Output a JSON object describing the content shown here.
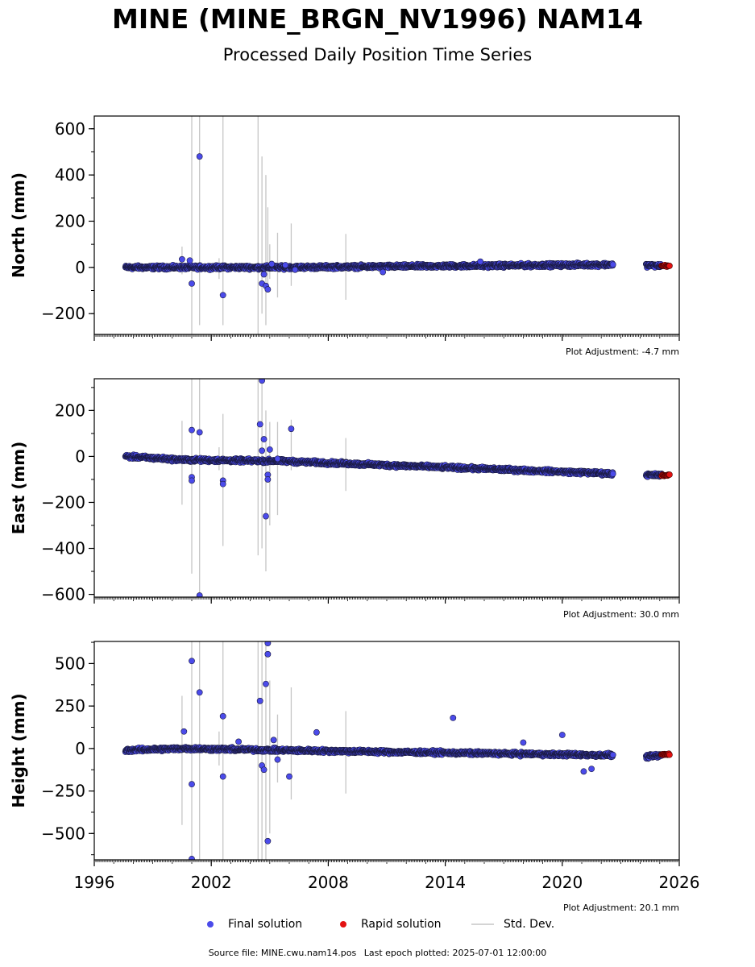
{
  "title": "MINE (MINE_BRGN_NV1996) NAM14",
  "subtitle": "Processed Daily Position Time Series",
  "legend": {
    "final_label": "Final solution",
    "rapid_label": "Rapid solution",
    "std_label": "Std. Dev.",
    "final_color": "#4b4bea",
    "rapid_color": "#e31212",
    "std_color": "#d4d4d4"
  },
  "footer": {
    "source": "Source file: MINE.cwu.nam14.pos",
    "last_epoch": "Last epoch plotted: 2025-07-01 12:00:00"
  },
  "chart_data": [
    {
      "type": "scatter",
      "ylabel": "North (mm)",
      "adjustment": "Plot Adjustment: -4.7 mm",
      "xlim": [
        1996,
        2026
      ],
      "ylim": [
        -290,
        655
      ],
      "yticks": [
        -200,
        0,
        200,
        400,
        600
      ],
      "ytick_labels": [
        "−200",
        "0",
        "200",
        "400",
        "600"
      ],
      "xtick_labels_shown": false,
      "segments": [
        [
          1997.6,
          2000.6,
          0,
          0
        ],
        [
          2000.6,
          2005.4,
          0,
          0
        ],
        [
          2005.4,
          2022.6,
          0,
          12
        ],
        [
          2024.3,
          2025.1,
          9,
          7
        ]
      ],
      "rapid_segment": [
        2025.1,
        2025.5,
        7,
        7
      ],
      "outliers": [
        [
          2001.4,
          480
        ],
        [
          2000.9,
          30
        ],
        [
          2000.5,
          35
        ],
        [
          2001.0,
          -70
        ],
        [
          2002.6,
          -120
        ],
        [
          2004.6,
          -70
        ],
        [
          2004.8,
          -80
        ],
        [
          2004.9,
          -95
        ],
        [
          2005.1,
          15
        ],
        [
          2004.7,
          -30
        ],
        [
          2005.8,
          10
        ],
        [
          2006.3,
          -10
        ],
        [
          2010.8,
          -20
        ],
        [
          2015.8,
          25
        ]
      ],
      "std_bars": [
        [
          2001.0,
          -290,
          655
        ],
        [
          2001.4,
          -250,
          655
        ],
        [
          2002.6,
          -250,
          655
        ],
        [
          2004.4,
          -290,
          655
        ],
        [
          2004.6,
          -200,
          480
        ],
        [
          2004.8,
          -250,
          400
        ],
        [
          2002.4,
          -50,
          40
        ],
        [
          2000.5,
          -30,
          90
        ],
        [
          2004.9,
          -100,
          260
        ],
        [
          2005.4,
          -130,
          150
        ],
        [
          2006.1,
          -80,
          190
        ],
        [
          2008.9,
          -140,
          145
        ],
        [
          2005.0,
          -50,
          100
        ]
      ]
    },
    {
      "type": "scatter",
      "ylabel": "East (mm)",
      "adjustment": "Plot Adjustment: 30.0 mm",
      "xlim": [
        1996,
        2026
      ],
      "ylim": [
        -612,
        338
      ],
      "yticks": [
        -600,
        -400,
        -200,
        0,
        200
      ],
      "ytick_labels": [
        "−600",
        "−400",
        "−200",
        "0",
        "200"
      ],
      "xtick_labels_shown": false,
      "segments": [
        [
          1997.6,
          2000.6,
          0,
          -15
        ],
        [
          2000.6,
          2005.4,
          -15,
          -20
        ],
        [
          2005.4,
          2022.6,
          -20,
          -75
        ],
        [
          2024.3,
          2025.1,
          -80,
          -82
        ]
      ],
      "rapid_segment": [
        2025.1,
        2025.5,
        -82,
        -82
      ],
      "outliers": [
        [
          2001.0,
          115
        ],
        [
          2001.4,
          105
        ],
        [
          2001.0,
          -90
        ],
        [
          2001.0,
          -105
        ],
        [
          2002.6,
          -105
        ],
        [
          2002.6,
          -120
        ],
        [
          2004.5,
          140
        ],
        [
          2004.6,
          330
        ],
        [
          2004.7,
          75
        ],
        [
          2004.6,
          25
        ],
        [
          2004.9,
          -80
        ],
        [
          2004.9,
          -100
        ],
        [
          2004.8,
          -260
        ],
        [
          2006.1,
          120
        ],
        [
          2001.4,
          -605
        ],
        [
          2005.0,
          30
        ],
        [
          2005.4,
          -10
        ]
      ],
      "std_bars": [
        [
          2000.5,
          -210,
          155
        ],
        [
          2001.0,
          -510,
          338
        ],
        [
          2001.4,
          -612,
          338
        ],
        [
          2002.6,
          -390,
          185
        ],
        [
          2002.4,
          -60,
          40
        ],
        [
          2004.4,
          -430,
          338
        ],
        [
          2004.6,
          -400,
          338
        ],
        [
          2004.8,
          -500,
          200
        ],
        [
          2005.0,
          -300,
          150
        ],
        [
          2005.4,
          -255,
          150
        ],
        [
          2006.1,
          -60,
          160
        ],
        [
          2008.9,
          -150,
          80
        ]
      ]
    },
    {
      "type": "scatter",
      "ylabel": "Height (mm)",
      "adjustment": "Plot Adjustment: 20.1 mm",
      "xlim": [
        1996,
        2026
      ],
      "xticks": [
        1996,
        2002,
        2008,
        2014,
        2020,
        2026
      ],
      "xtick_labels": [
        "1996",
        "2002",
        "2008",
        "2014",
        "2020",
        "2026"
      ],
      "ylim": [
        -655,
        630
      ],
      "yticks": [
        -500,
        -250,
        0,
        250,
        500
      ],
      "ytick_labels": [
        "−500",
        "−250",
        "0",
        "250",
        "500"
      ],
      "xtick_labels_shown": true,
      "segments": [
        [
          1997.6,
          2000.6,
          -10,
          0
        ],
        [
          2000.6,
          2005.4,
          0,
          -10
        ],
        [
          2005.4,
          2022.6,
          -10,
          -40
        ],
        [
          2024.3,
          2025.1,
          -50,
          -40
        ]
      ],
      "rapid_segment": [
        2025.1,
        2025.5,
        -35,
        -35
      ],
      "outliers": [
        [
          2001.0,
          515
        ],
        [
          2001.4,
          330
        ],
        [
          2000.6,
          100
        ],
        [
          2001.0,
          -210
        ],
        [
          2002.6,
          190
        ],
        [
          2002.6,
          -165
        ],
        [
          2003.4,
          40
        ],
        [
          2004.5,
          280
        ],
        [
          2004.8,
          380
        ],
        [
          2004.9,
          555
        ],
        [
          2004.9,
          620
        ],
        [
          2004.9,
          -545
        ],
        [
          2005.2,
          50
        ],
        [
          2005.4,
          -65
        ],
        [
          2006.0,
          -165
        ],
        [
          2007.4,
          95
        ],
        [
          2014.4,
          180
        ],
        [
          2018.0,
          35
        ],
        [
          2020.0,
          80
        ],
        [
          2021.1,
          -135
        ],
        [
          2021.5,
          -120
        ],
        [
          2001.0,
          -650
        ],
        [
          2004.6,
          -100
        ],
        [
          2004.7,
          -125
        ]
      ],
      "std_bars": [
        [
          2000.5,
          -450,
          310
        ],
        [
          2001.0,
          -655,
          630
        ],
        [
          2001.4,
          -655,
          630
        ],
        [
          2002.6,
          -655,
          630
        ],
        [
          2002.4,
          -100,
          100
        ],
        [
          2004.4,
          -655,
          630
        ],
        [
          2004.6,
          -655,
          630
        ],
        [
          2004.8,
          -655,
          630
        ],
        [
          2005.0,
          -500,
          400
        ],
        [
          2005.4,
          -200,
          200
        ],
        [
          2006.1,
          -300,
          360
        ],
        [
          2008.9,
          -265,
          220
        ]
      ]
    }
  ]
}
